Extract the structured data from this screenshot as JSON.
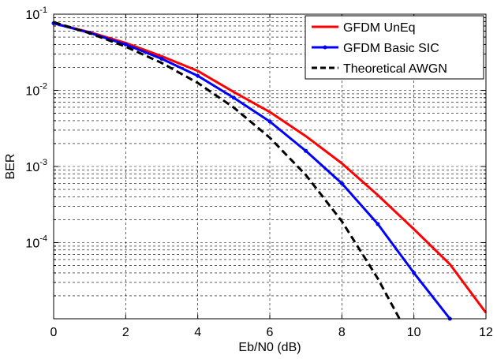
{
  "chart_data": {
    "type": "line",
    "xlabel": "Eb/N0 (dB)",
    "ylabel": "BER",
    "xlim": [
      0,
      12
    ],
    "ylim": [
      1e-05,
      0.1
    ],
    "yscale": "log",
    "grid": true,
    "legend_position": "top-right",
    "x_ticks": [
      "0",
      "2",
      "4",
      "6",
      "8",
      "10",
      "12"
    ],
    "y_ticks": [
      {
        "base": "10",
        "exp": "-1",
        "value": 0.1
      },
      {
        "base": "10",
        "exp": "-2",
        "value": 0.01
      },
      {
        "base": "10",
        "exp": "-3",
        "value": 0.001
      },
      {
        "base": "10",
        "exp": "-4",
        "value": 0.0001
      }
    ],
    "series": [
      {
        "name": "GFDM UnEq",
        "color": "#ff0000",
        "style": "solid",
        "x": [
          0,
          1,
          2,
          3,
          4,
          5,
          6,
          7,
          8,
          9,
          10,
          11,
          12
        ],
        "y": [
          0.076,
          0.058,
          0.042,
          0.028,
          0.018,
          0.0095,
          0.0052,
          0.0025,
          0.0011,
          0.00042,
          0.00015,
          5.2e-05,
          1.2e-05
        ]
      },
      {
        "name": "GFDM Basic SIC",
        "color": "#0000ff",
        "style": "solid-marker",
        "x": [
          0,
          1,
          2,
          3,
          4,
          5,
          6,
          7,
          8,
          9,
          10,
          11
        ],
        "y": [
          0.076,
          0.057,
          0.04,
          0.026,
          0.0155,
          0.008,
          0.0039,
          0.0016,
          0.0006,
          0.000175,
          4e-05,
          1e-05
        ]
      },
      {
        "name": "Theoretical AWGN",
        "color": "#000000",
        "style": "dashed",
        "x": [
          0,
          1,
          2,
          3,
          4,
          5,
          6,
          7,
          8,
          9,
          9.6
        ],
        "y": [
          0.0786,
          0.0563,
          0.0375,
          0.0229,
          0.0125,
          0.00595,
          0.00239,
          0.000773,
          0.000191,
          3.36e-05,
          1e-05
        ]
      }
    ]
  }
}
